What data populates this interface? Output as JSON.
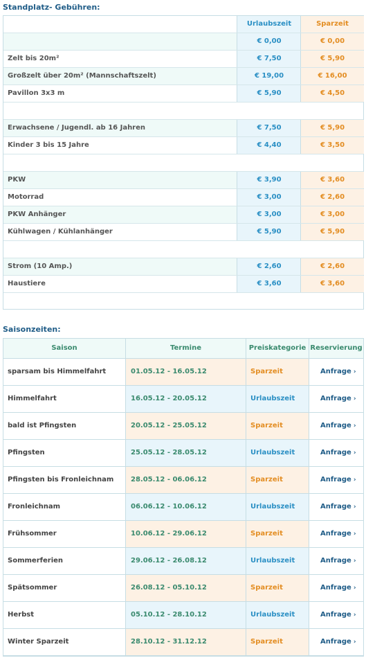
{
  "fees": {
    "heading": "Standplatz- Gebühren:",
    "col_urlaub": "Urlaubszeit",
    "col_spar": "Sparzeit",
    "rows": [
      {
        "label": "",
        "urlaub": "€ 0,00",
        "spar": "€ 0,00"
      },
      {
        "label": "Zelt bis 20m²",
        "urlaub": "€ 7,50",
        "spar": "€ 5,90"
      },
      {
        "label": "Großzelt über 20m² (Mannschaftszelt)",
        "urlaub": "€ 19,00",
        "spar": "€ 16,00"
      },
      {
        "label": "Pavillon 3x3 m",
        "urlaub": "€ 5,90",
        "spar": "€ 4,50"
      },
      {
        "label": "Erwachsene / Jugendl. ab 16 Jahren",
        "urlaub": "€ 7,50",
        "spar": "€ 5,90"
      },
      {
        "label": "Kinder 3 bis 15 Jahre",
        "urlaub": "€ 4,40",
        "spar": "€ 3,50"
      },
      {
        "label": "PKW",
        "urlaub": "€ 3,90",
        "spar": "€ 3,60"
      },
      {
        "label": "Motorrad",
        "urlaub": "€ 3,00",
        "spar": "€ 2,60"
      },
      {
        "label": "PKW Anhänger",
        "urlaub": "€ 3,00",
        "spar": "€ 3,00"
      },
      {
        "label": "Kühlwagen / Kühlanhänger",
        "urlaub": "€ 5,90",
        "spar": "€ 5,90"
      },
      {
        "label": "Strom (10 Amp.)",
        "urlaub": "€ 2,60",
        "spar": "€ 2,60"
      },
      {
        "label": "Haustiere",
        "urlaub": "€ 3,60",
        "spar": "€ 3,60"
      }
    ]
  },
  "seasons": {
    "heading": "Saisonzeiten:",
    "headers": [
      "Saison",
      "Termine",
      "Preiskategorie",
      "Reservierung"
    ],
    "link_label": "Anfrage",
    "rows": [
      {
        "name": "sparsam bis Himmelfahrt",
        "dates": "01.05.12 - 16.05.12",
        "category": "Sparzeit"
      },
      {
        "name": "Himmelfahrt",
        "dates": "16.05.12 - 20.05.12",
        "category": "Urlaubszeit"
      },
      {
        "name": "bald ist Pfingsten",
        "dates": "20.05.12 - 25.05.12",
        "category": "Sparzeit"
      },
      {
        "name": "Pfingsten",
        "dates": "25.05.12 - 28.05.12",
        "category": "Urlaubszeit"
      },
      {
        "name": "Pfingsten bis Fronleichnam",
        "dates": "28.05.12 - 06.06.12",
        "category": "Sparzeit"
      },
      {
        "name": "Fronleichnam",
        "dates": "06.06.12 - 10.06.12",
        "category": "Urlaubszeit"
      },
      {
        "name": "Frühsommer",
        "dates": "10.06.12 - 29.06.12",
        "category": "Sparzeit"
      },
      {
        "name": "Sommerferien",
        "dates": "29.06.12 - 26.08.12",
        "category": "Urlaubszeit"
      },
      {
        "name": "Spätsommer",
        "dates": "26.08.12 - 05.10.12",
        "category": "Sparzeit"
      },
      {
        "name": "Herbst",
        "dates": "05.10.12 - 28.10.12",
        "category": "Urlaubszeit"
      },
      {
        "name": "Winter Sparzeit",
        "dates": "28.10.12 - 31.12.12",
        "category": "Sparzeit"
      }
    ]
  },
  "colors": {
    "heading": "#1f5c87",
    "urlaub_text": "#2a8fc4",
    "urlaub_bg": "#e8f5fb",
    "spar_text": "#e38d22",
    "spar_bg": "#fdf1e4",
    "dates_text": "#3a8a6e"
  }
}
